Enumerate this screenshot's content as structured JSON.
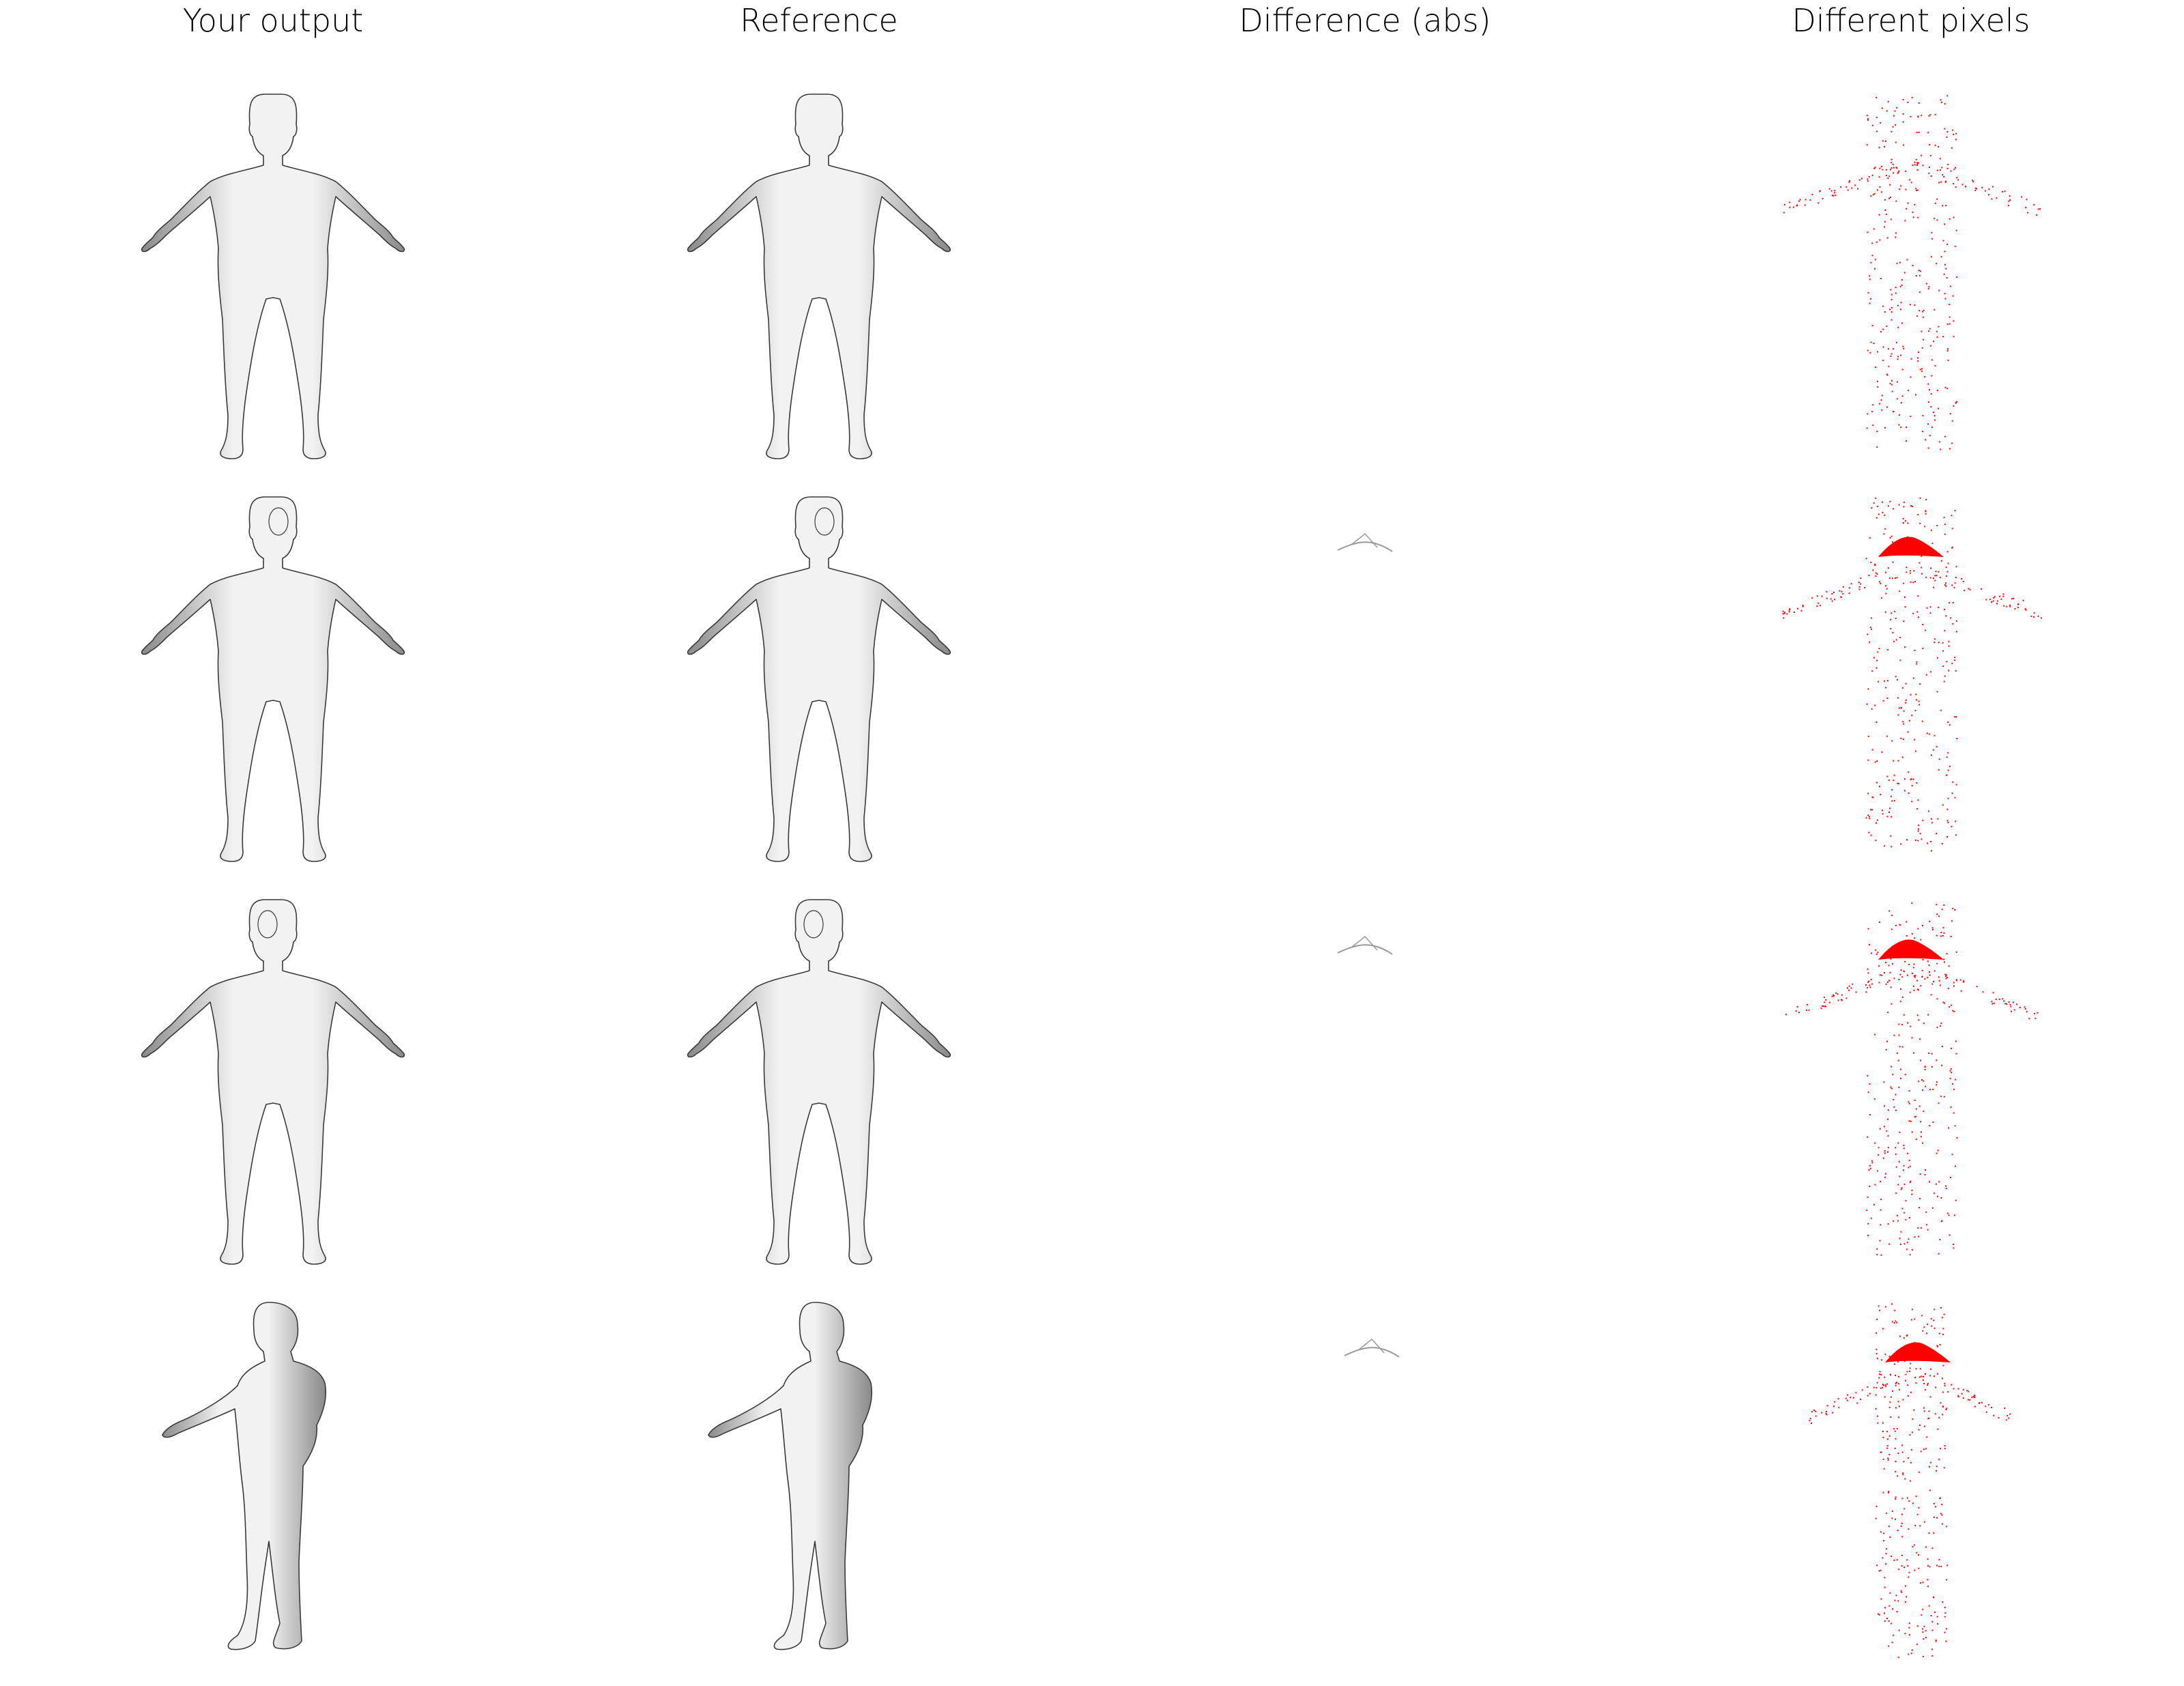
{
  "columns": [
    {
      "title": "Your output",
      "kind": "render"
    },
    {
      "title": "Reference",
      "kind": "render"
    },
    {
      "title": "Difference (abs)",
      "kind": "abs-diff"
    },
    {
      "title": "Different pixels",
      "kind": "pixel-mask"
    }
  ],
  "rows": [
    {
      "pose": "a-pose-front",
      "head_turn": "none",
      "diff_region": "none"
    },
    {
      "pose": "a-pose-front",
      "head_turn": "right",
      "diff_region": "neck"
    },
    {
      "pose": "a-pose-front",
      "head_turn": "left",
      "diff_region": "neck"
    },
    {
      "pose": "standing-rotated",
      "head_turn": "none",
      "diff_region": "neck"
    }
  ],
  "colors": {
    "background": "#ffffff",
    "skin_light": "#f2f2f2",
    "skin_shadow": "#8a8a8a",
    "outline": "#3a3a3a",
    "diff_mark": "#ff0000",
    "abs_diff": "#9a9a9a"
  }
}
